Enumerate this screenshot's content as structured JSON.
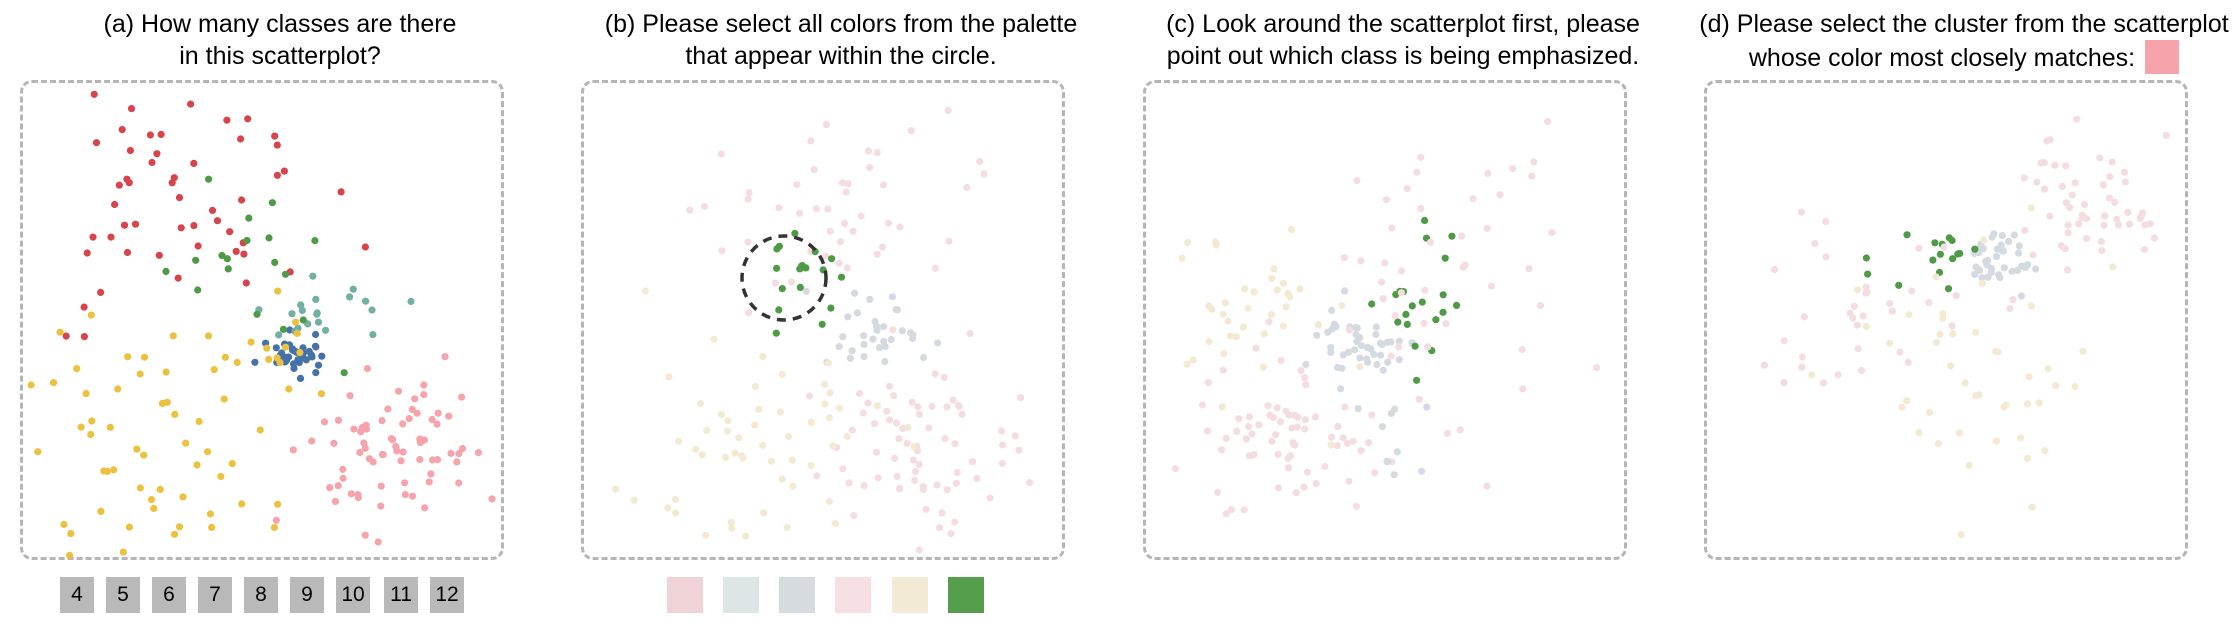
{
  "panels": [
    {
      "label": "(a)",
      "title_lines": [
        "(a) How many classes are there",
        "in this scatterplot?"
      ]
    },
    {
      "label": "(b)",
      "title_lines": [
        "(b) Please select all colors from the palette",
        "that appear within the circle."
      ]
    },
    {
      "label": "(c)",
      "title_lines": [
        "(c) Look around the scatterplot first, please",
        "point out which class is being emphasized."
      ]
    },
    {
      "label": "(d)",
      "title_lines": [
        "(d) Please select the cluster from the scatterplot",
        "whose color most closely matches:"
      ],
      "target_color": "#f7a3ab"
    }
  ],
  "class_count_options": [
    "4",
    "5",
    "6",
    "7",
    "8",
    "9",
    "10",
    "11",
    "12"
  ],
  "palette_options": [
    "#efd3d6",
    "#dde5e5",
    "#d6dbe0",
    "#f6e0e3",
    "#f2ead4",
    "#559e4b"
  ],
  "colors": {
    "red": "#d9434b",
    "yellow": "#ecc140",
    "blue": "#4471a7",
    "green": "#4f9a46",
    "teal": "#71b0a3",
    "pink": "#f7a3ab",
    "faded_pink": "#f4dde0",
    "faded_grey": "#d4dadf",
    "faded_yellow": "#f3ead3",
    "frame": "#b5b5b5",
    "button": "#b9b9b9"
  },
  "chart_data": [
    {
      "type": "scatter",
      "title": "(a) How many classes are there in this scatterplot?",
      "xlim": [
        0,
        100
      ],
      "ylim": [
        0,
        100
      ],
      "grid": false,
      "series": [
        {
          "color": "#d9434b",
          "points": [
            [
              8,
              14
            ],
            [
              26,
              50
            ],
            [
              20,
              24
            ],
            [
              36,
              22
            ],
            [
              10,
              60
            ],
            [
              15,
              38
            ],
            [
              28,
              30
            ]
          ]
        },
        {
          "color": "#ecc140",
          "points": [
            [
              12,
              75
            ],
            [
              22,
              85
            ],
            [
              35,
              90
            ],
            [
              30,
              60
            ],
            [
              18,
              96
            ],
            [
              45,
              99
            ],
            [
              48,
              72
            ]
          ]
        },
        {
          "color": "#4471a7",
          "points": [
            [
              56,
              57
            ],
            [
              58,
              59
            ],
            [
              55,
              60
            ]
          ]
        },
        {
          "color": "#4f9a46",
          "points": [
            [
              36,
              32
            ],
            [
              47,
              42
            ],
            [
              53,
              55
            ]
          ]
        },
        {
          "color": "#71b0a3",
          "points": [
            [
              68,
              48
            ],
            [
              82,
              48
            ],
            [
              83,
              57
            ]
          ]
        },
        {
          "color": "#f7a3ab",
          "points": [
            [
              75,
              72
            ],
            [
              80,
              80
            ],
            [
              70,
              85
            ]
          ]
        }
      ]
    },
    {
      "type": "scatter",
      "title": "(b) Please select all colors from the palette that appear within the circle.",
      "xlim": [
        0,
        100
      ],
      "ylim": [
        0,
        100
      ],
      "annotations": [
        "dashed circle"
      ],
      "series": [
        {
          "color": "#559e4b",
          "points": [
            [
              35,
              32
            ],
            [
              46,
              42
            ],
            [
              53,
              52
            ]
          ]
        },
        {
          "color": "#efd3d6",
          "points": [
            [
              75,
              72
            ],
            [
              70,
              85
            ]
          ]
        },
        {
          "color": "#d6dbe0",
          "points": [
            [
              58,
              60
            ],
            [
              80,
              48
            ]
          ]
        },
        {
          "color": "#f2ead4",
          "points": [
            [
              20,
              82
            ],
            [
              35,
              90
            ]
          ]
        }
      ]
    },
    {
      "type": "scatter",
      "title": "(c) Look around the scatterplot first, please point out which class is being emphasized.",
      "xlim": [
        0,
        100
      ],
      "ylim": [
        0,
        100
      ],
      "series": [
        {
          "color": "#4f9a46",
          "points": [
            [
              55,
              37
            ],
            [
              58,
              50
            ],
            [
              66,
              40
            ],
            [
              60,
              55
            ]
          ]
        },
        {
          "color": "#f4dde0",
          "points": [
            [
              30,
              80
            ],
            [
              70,
              20
            ]
          ]
        },
        {
          "color": "#d4dadf",
          "points": [
            [
              42,
              58
            ],
            [
              45,
              53
            ]
          ]
        },
        {
          "color": "#f3ead3",
          "points": [
            [
              15,
              60
            ],
            [
              25,
              45
            ]
          ]
        }
      ]
    },
    {
      "type": "scatter",
      "title": "(d) Please select the cluster from the scatterplot whose color most closely matches:",
      "xlim": [
        0,
        100
      ],
      "ylim": [
        0,
        100
      ],
      "series": [
        {
          "color": "#4f9a46",
          "points": [
            [
              40,
              40
            ],
            [
              45,
              35
            ],
            [
              55,
              36
            ]
          ]
        },
        {
          "color": "#d4dadf",
          "points": [
            [
              62,
              40
            ],
            [
              60,
              42
            ]
          ]
        },
        {
          "color": "#f4dde0",
          "points": [
            [
              78,
              25
            ],
            [
              82,
              30
            ]
          ]
        },
        {
          "color": "#f3ead3",
          "points": [
            [
              60,
              70
            ],
            [
              50,
              80
            ]
          ]
        }
      ]
    }
  ]
}
